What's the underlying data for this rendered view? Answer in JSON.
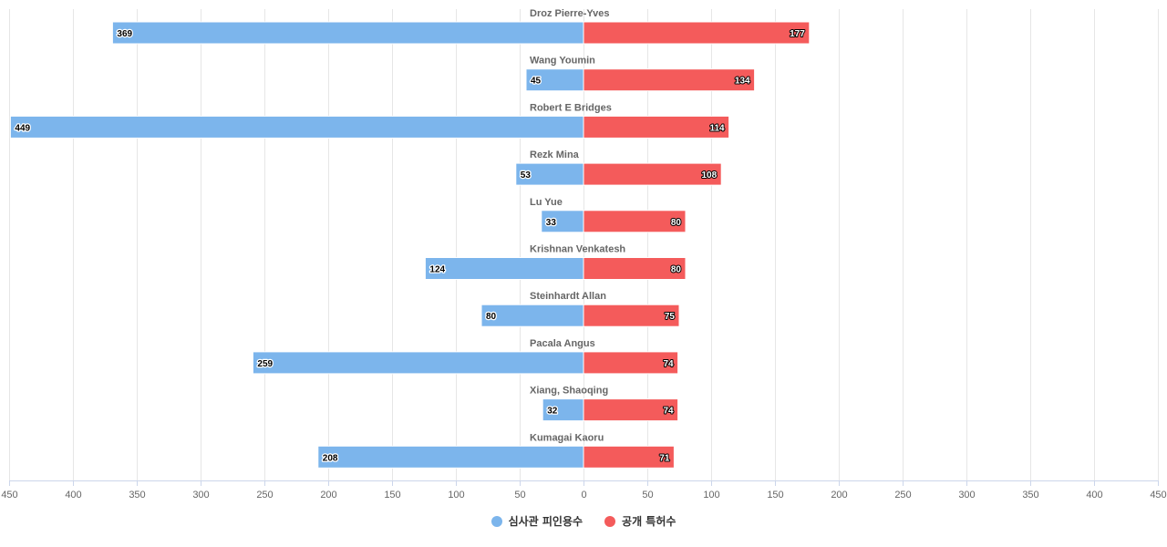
{
  "chart_data": {
    "type": "bar",
    "orientation": "horizontal",
    "layout": "diverging",
    "categories": [
      "Droz Pierre-Yves",
      "Wang Youmin",
      "Robert E Bridges",
      "Rezk Mina",
      "Lu Yue",
      "Krishnan Venkatesh",
      "Steinhardt Allan",
      "Pacala Angus",
      "Xiang, Shaoqing",
      "Kumagai Kaoru"
    ],
    "series": [
      {
        "name": "심사관 피인용수",
        "side": "left",
        "color": "#7cb5ec",
        "values": [
          369,
          45,
          449,
          53,
          33,
          124,
          80,
          259,
          32,
          208
        ]
      },
      {
        "name": "공개 특허수",
        "side": "right",
        "color": "#f45b5b",
        "values": [
          177,
          134,
          114,
          108,
          80,
          80,
          75,
          74,
          74,
          71
        ]
      }
    ],
    "xlim": [
      -450,
      450
    ],
    "tick_values": [
      450,
      400,
      350,
      300,
      250,
      200,
      150,
      100,
      50,
      0,
      50,
      100,
      150,
      200,
      250,
      300,
      350,
      400,
      450
    ],
    "grid": true,
    "legend_position": "bottom-center",
    "title": "",
    "xlabel": "",
    "ylabel": ""
  }
}
